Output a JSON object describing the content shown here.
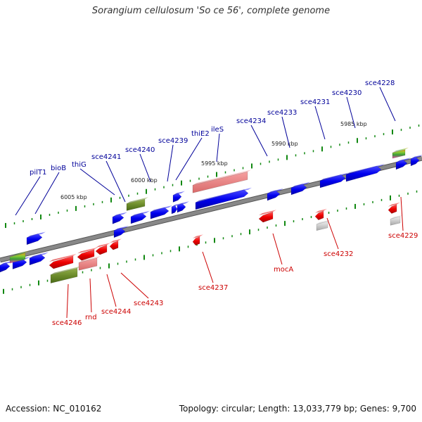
{
  "title": "Sorangium cellulosum 'So ce 56', complete genome",
  "accession": "Accession: NC_010162",
  "summary": "Topology: circular; Length: 13,033,779 bp; Genes: 9,700",
  "colors": {
    "forward_gene": "#0000ee",
    "reverse_gene": "#ee0000",
    "forward_label": "#000099",
    "reverse_label": "#cc0000",
    "backbone": "#888888",
    "tick": "#118811"
  },
  "ruler_labels": [
    "6005 kbp",
    "6000 kbp",
    "5995 kbp",
    "5990 kbp",
    "5985 kbp"
  ],
  "forward_gene_labels": [
    "pilT1",
    "bioB",
    "thiG",
    "sce4241",
    "sce4240",
    "sce4239",
    "thiE2",
    "ileS",
    "sce4234",
    "sce4233",
    "sce4231",
    "sce4230",
    "sce4228"
  ],
  "reverse_gene_labels": [
    "sce4246",
    "rnd",
    "sce4244",
    "sce4243",
    "sce4237",
    "mocA",
    "sce4232",
    "sce4229"
  ]
}
